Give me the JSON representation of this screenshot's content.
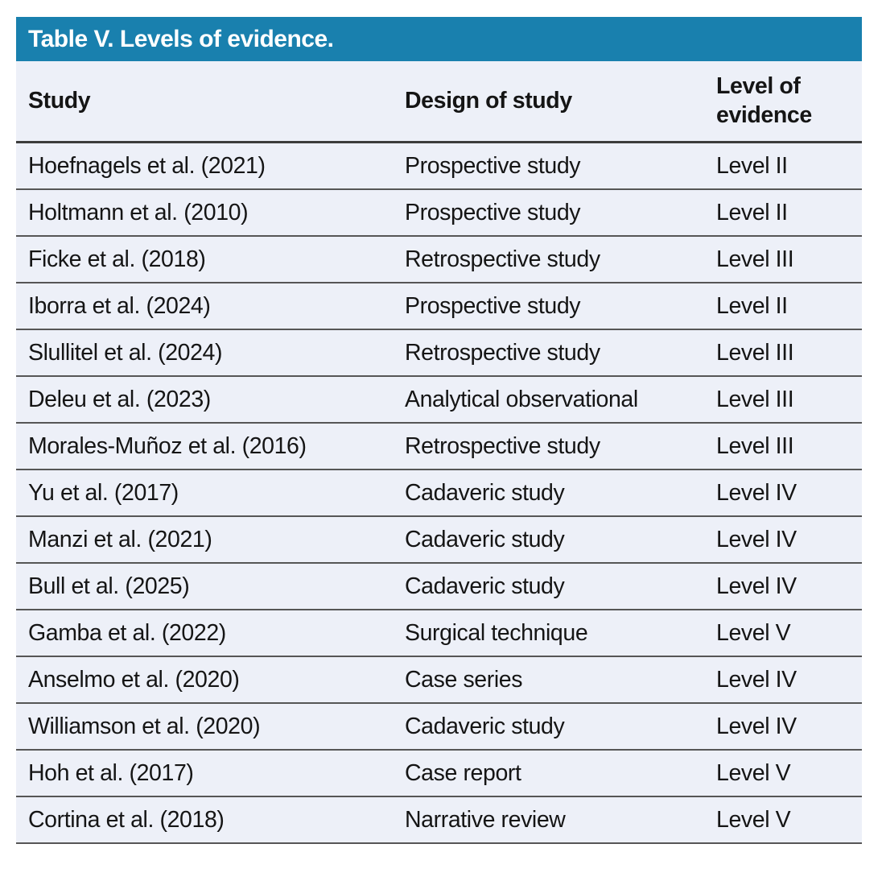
{
  "title_bar": {
    "title": "Table V. Levels of evidence.",
    "background_color": "#1980ae",
    "text_color": "#ffffff"
  },
  "table": {
    "row_background_color": "#edf0f8",
    "separator_color": "#565656",
    "columns": [
      {
        "label": "Study"
      },
      {
        "label": "Design of study"
      },
      {
        "label": "Level of evidence"
      }
    ],
    "rows": [
      {
        "study": "Hoefnagels et al. (2021)",
        "design": "Prospective study",
        "level": "Level II"
      },
      {
        "study": "Holtmann et al. (2010)",
        "design": "Prospective study",
        "level": "Level II"
      },
      {
        "study": "Ficke et al. (2018)",
        "design": "Retrospective study",
        "level": "Level III"
      },
      {
        "study": "Iborra et al. (2024)",
        "design": "Prospective study",
        "level": "Level II"
      },
      {
        "study": "Slullitel et al. (2024)",
        "design": "Retrospective study",
        "level": "Level III"
      },
      {
        "study": "Deleu et al. (2023)",
        "design": "Analytical observational",
        "level": "Level III"
      },
      {
        "study": "Morales-Muñoz et al. (2016)",
        "design": "Retrospective study",
        "level": "Level III"
      },
      {
        "study": "Yu et al. (2017)",
        "design": "Cadaveric study",
        "level": "Level IV"
      },
      {
        "study": "Manzi et al. (2021)",
        "design": "Cadaveric study",
        "level": "Level IV"
      },
      {
        "study": "Bull et al. (2025)",
        "design": "Cadaveric study",
        "level": "Level IV"
      },
      {
        "study": "Gamba et al. (2022)",
        "design": "Surgical technique",
        "level": "Level V"
      },
      {
        "study": "Anselmo et al. (2020)",
        "design": "Case series",
        "level": "Level IV"
      },
      {
        "study": "Williamson et al. (2020)",
        "design": "Cadaveric study",
        "level": "Level IV"
      },
      {
        "study": "Hoh et al. (2017)",
        "design": "Case report",
        "level": "Level V"
      },
      {
        "study": "Cortina et al. (2018)",
        "design": "Narrative review",
        "level": "Level V"
      }
    ]
  }
}
